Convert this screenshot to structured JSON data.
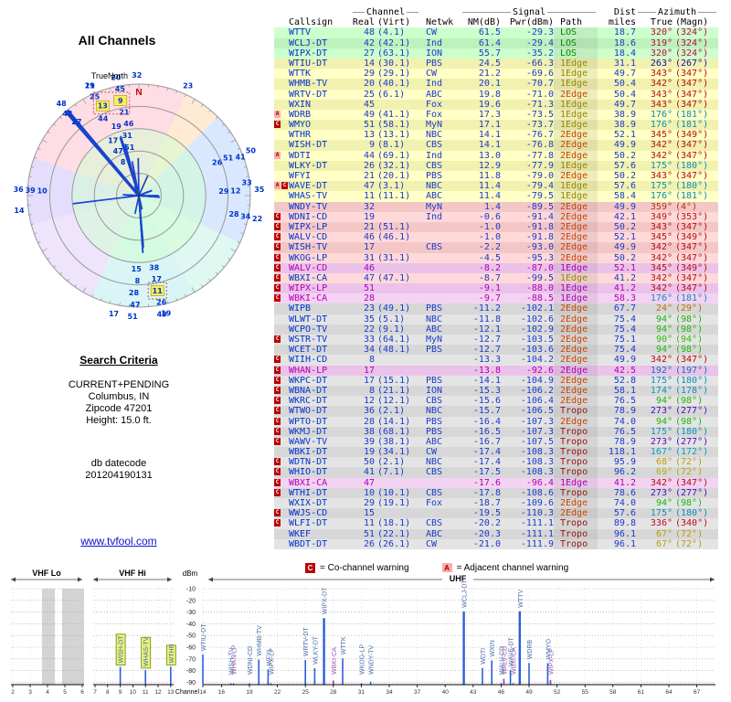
{
  "title": "All Channels",
  "radar": {
    "true_north_label": "TrueNorth",
    "north_label": "N",
    "highlighted_channels": [
      9,
      11,
      13
    ]
  },
  "criteria": {
    "heading": "Search Criteria",
    "lines": [
      "CURRENT+PENDING",
      "Columbus, IN",
      "Zipcode 47201",
      "Height: 15.0 ft."
    ],
    "db_label": "db datecode",
    "db_value": "201204190131"
  },
  "link": {
    "text": "www.tvfool.com"
  },
  "legend": {
    "c_symbol": "C",
    "c_text": "= Co-channel warning",
    "a_symbol": "A",
    "a_text": "= Adjacent channel warning"
  },
  "table": {
    "group_headers": {
      "channel": "Channel",
      "signal": "Signal",
      "dist": "Dist",
      "azimuth": "Azimuth"
    },
    "col_headers": {
      "callsign": "Callsign",
      "real": "Real",
      "virt": "(Virt)",
      "netwk": "Netwk",
      "nm": "NM(dB)",
      "pwr": "Pwr(dBm)",
      "path": "Path",
      "miles": "miles",
      "true": "True",
      "magn": "(Magn)"
    },
    "rows": [
      {
        "c": "WTTV",
        "r": 48,
        "v": "(4.1)",
        "n": "CW",
        "nm": "61.5",
        "pw": "-29.3",
        "p": "LOS",
        "mi": "18.7",
        "az": 320,
        "mg": 324,
        "z": "green",
        "w": ""
      },
      {
        "c": "WCLJ-DT",
        "r": 42,
        "v": "(42.1)",
        "n": "Ind",
        "nm": "61.4",
        "pw": "-29.4",
        "p": "LOS",
        "mi": "18.6",
        "az": 319,
        "mg": 324,
        "z": "green",
        "w": ""
      },
      {
        "c": "WIPX-DT",
        "r": 27,
        "v": "(63.1)",
        "n": "ION",
        "nm": "55.7",
        "pw": "-35.2",
        "p": "LOS",
        "mi": "18.4",
        "az": 320,
        "mg": 324,
        "z": "green",
        "w": ""
      },
      {
        "c": "WTIU-DT",
        "r": 14,
        "v": "(30.1)",
        "n": "PBS",
        "nm": "24.5",
        "pw": "-66.3",
        "p": "1Edge",
        "mi": "31.1",
        "az": 263,
        "mg": 267,
        "z": "yellow",
        "w": ""
      },
      {
        "c": "WTTK",
        "r": 29,
        "v": "(29.1)",
        "n": "CW",
        "nm": "21.2",
        "pw": "-69.6",
        "p": "1Edge",
        "mi": "49.7",
        "az": 343,
        "mg": 347,
        "z": "yellow",
        "w": ""
      },
      {
        "c": "WHMB-TV",
        "r": 20,
        "v": "(40.1)",
        "n": "Ind",
        "nm": "20.1",
        "pw": "-70.7",
        "p": "1Edge",
        "mi": "50.4",
        "az": 342,
        "mg": 347,
        "z": "yellow",
        "w": ""
      },
      {
        "c": "WRTV-DT",
        "r": 25,
        "v": "(6.1)",
        "n": "ABC",
        "nm": "19.8",
        "pw": "-71.0",
        "p": "2Edge",
        "mi": "50.4",
        "az": 343,
        "mg": 347,
        "z": "yellow",
        "w": ""
      },
      {
        "c": "WXIN",
        "r": 45,
        "v": "",
        "n": "Fox",
        "nm": "19.6",
        "pw": "-71.3",
        "p": "1Edge",
        "mi": "49.7",
        "az": 343,
        "mg": 347,
        "z": "yellow",
        "w": ""
      },
      {
        "c": "WDRB",
        "r": 49,
        "v": "(41.1)",
        "n": "Fox",
        "nm": "17.3",
        "pw": "-73.5",
        "p": "1Edge",
        "mi": "38.9",
        "az": 176,
        "mg": 181,
        "z": "yellow",
        "w": "A"
      },
      {
        "c": "WMYO",
        "r": 51,
        "v": "(58.1)",
        "n": "MyN",
        "nm": "17.1",
        "pw": "-73.7",
        "p": "1Edge",
        "mi": "38.9",
        "az": 176,
        "mg": 181,
        "z": "yellow",
        "w": "C"
      },
      {
        "c": "WTHR",
        "r": 13,
        "v": "(13.1)",
        "n": "NBC",
        "nm": "14.1",
        "pw": "-76.7",
        "p": "2Edge",
        "mi": "52.1",
        "az": 345,
        "mg": 349,
        "z": "yellow",
        "w": ""
      },
      {
        "c": "WISH-DT",
        "r": 9,
        "v": "(8.1)",
        "n": "CBS",
        "nm": "14.1",
        "pw": "-76.8",
        "p": "2Edge",
        "mi": "49.9",
        "az": 342,
        "mg": 347,
        "z": "yellow",
        "w": ""
      },
      {
        "c": "WDTI",
        "r": 44,
        "v": "(69.1)",
        "n": "Ind",
        "nm": "13.0",
        "pw": "-77.8",
        "p": "2Edge",
        "mi": "50.2",
        "az": 342,
        "mg": 347,
        "z": "yellow",
        "w": "A"
      },
      {
        "c": "WLKY-DT",
        "r": 26,
        "v": "(32.1)",
        "n": "CBS",
        "nm": "12.9",
        "pw": "-77.9",
        "p": "1Edge",
        "mi": "57.6",
        "az": 175,
        "mg": 180,
        "z": "yellow",
        "w": ""
      },
      {
        "c": "WFYI",
        "r": 21,
        "v": "(20.1)",
        "n": "PBS",
        "nm": "11.8",
        "pw": "-79.0",
        "p": "2Edge",
        "mi": "50.2",
        "az": 343,
        "mg": 347,
        "z": "yellow",
        "w": ""
      },
      {
        "c": "WAVE-DT",
        "r": 47,
        "v": "(3.1)",
        "n": "NBC",
        "nm": "11.4",
        "pw": "-79.4",
        "p": "1Edge",
        "mi": "57.6",
        "az": 175,
        "mg": 180,
        "z": "yellow",
        "w": "AC"
      },
      {
        "c": "WHAS-TV",
        "r": 11,
        "v": "(11.1)",
        "n": "ABC",
        "nm": "11.4",
        "pw": "-79.5",
        "p": "1Edge",
        "mi": "58.4",
        "az": 176,
        "mg": 181,
        "z": "yellow",
        "w": ""
      },
      {
        "c": "WNDY-TV",
        "r": 32,
        "v": "",
        "n": "MyN",
        "nm": "1.4",
        "pw": "-89.5",
        "p": "2Edge",
        "mi": "49.9",
        "az": 359,
        "mg": 4,
        "z": "pink",
        "w": ""
      },
      {
        "c": "WDNI-CD",
        "r": 19,
        "v": "",
        "n": "Ind",
        "nm": "-0.6",
        "pw": "-91.4",
        "p": "2Edge",
        "mi": "42.1",
        "az": 349,
        "mg": 353,
        "z": "pink",
        "w": "C"
      },
      {
        "c": "WIPX-LP",
        "r": 21,
        "v": "(51.1)",
        "n": "",
        "nm": "-1.0",
        "pw": "-91.8",
        "p": "2Edge",
        "mi": "50.2",
        "az": 343,
        "mg": 347,
        "z": "pink",
        "w": "C"
      },
      {
        "c": "WALV-CD",
        "r": 46,
        "v": "(46.1)",
        "n": "",
        "nm": "-1.0",
        "pw": "-91.8",
        "p": "2Edge",
        "mi": "52.1",
        "az": 345,
        "mg": 349,
        "z": "pink",
        "w": "C"
      },
      {
        "c": "WISH-TV",
        "r": 17,
        "v": "",
        "n": "CBS",
        "nm": "-2.2",
        "pw": "-93.0",
        "p": "2Edge",
        "mi": "49.9",
        "az": 342,
        "mg": 347,
        "z": "pink",
        "w": "C"
      },
      {
        "c": "WKOG-LP",
        "r": 31,
        "v": "(31.1)",
        "n": "",
        "nm": "-4.5",
        "pw": "-95.3",
        "p": "2Edge",
        "mi": "50.2",
        "az": 342,
        "mg": 347,
        "z": "pink",
        "w": "C"
      },
      {
        "c": "WALV-CD",
        "r": 46,
        "v": "",
        "n": "",
        "nm": "-8.2",
        "pw": "-87.0",
        "p": "1Edge",
        "mi": "52.1",
        "az": 345,
        "mg": 349,
        "z": "magenta",
        "w": "C"
      },
      {
        "c": "WBXI-CA",
        "r": 47,
        "v": "(47.1)",
        "n": "",
        "nm": "-8.7",
        "pw": "-99.5",
        "p": "1Edge",
        "mi": "41.2",
        "az": 342,
        "mg": 347,
        "z": "pink",
        "w": "C"
      },
      {
        "c": "WIPX-LP",
        "r": 51,
        "v": "",
        "n": "",
        "nm": "-9.1",
        "pw": "-88.0",
        "p": "1Edge",
        "mi": "41.2",
        "az": 342,
        "mg": 347,
        "z": "magenta",
        "w": "C"
      },
      {
        "c": "WBKI-CA",
        "r": 28,
        "v": "",
        "n": "",
        "nm": "-9.7",
        "pw": "-88.5",
        "p": "1Edge",
        "mi": "58.3",
        "az": 176,
        "mg": 181,
        "z": "magenta",
        "w": "C"
      },
      {
        "c": "WIPB",
        "r": 23,
        "v": "(49.1)",
        "n": "PBS",
        "nm": "-11.2",
        "pw": "-102.1",
        "p": "2Edge",
        "mi": "67.7",
        "az": 24,
        "mg": 29,
        "z": "gray",
        "w": ""
      },
      {
        "c": "WLWT-DT",
        "r": 35,
        "v": "(5.1)",
        "n": "NBC",
        "nm": "-11.8",
        "pw": "-102.6",
        "p": "2Edge",
        "mi": "75.4",
        "az": 94,
        "mg": 98,
        "z": "gray",
        "w": ""
      },
      {
        "c": "WCPO-TV",
        "r": 22,
        "v": "(9.1)",
        "n": "ABC",
        "nm": "-12.1",
        "pw": "-102.9",
        "p": "2Edge",
        "mi": "75.4",
        "az": 94,
        "mg": 98,
        "z": "gray",
        "w": ""
      },
      {
        "c": "WSTR-TV",
        "r": 33,
        "v": "(64.1)",
        "n": "MyN",
        "nm": "-12.7",
        "pw": "-103.5",
        "p": "2Edge",
        "mi": "75.1",
        "az": 90,
        "mg": 94,
        "z": "gray",
        "w": "C"
      },
      {
        "c": "WCET-DT",
        "r": 34,
        "v": "(48.1)",
        "n": "PBS",
        "nm": "-12.7",
        "pw": "-103.6",
        "p": "2Edge",
        "mi": "75.4",
        "az": 94,
        "mg": 98,
        "z": "gray",
        "w": ""
      },
      {
        "c": "WIIH-CD",
        "r": 8,
        "v": "",
        "n": "",
        "nm": "-13.3",
        "pw": "-104.2",
        "p": "2Edge",
        "mi": "49.9",
        "az": 342,
        "mg": 347,
        "z": "gray",
        "w": "C"
      },
      {
        "c": "WHAN-LP",
        "r": 17,
        "v": "",
        "n": "",
        "nm": "-13.8",
        "pw": "-92.6",
        "p": "2Edge",
        "mi": "42.5",
        "az": 192,
        "mg": 197,
        "z": "magenta",
        "w": "C"
      },
      {
        "c": "WKPC-DT",
        "r": 17,
        "v": "(15.1)",
        "n": "PBS",
        "nm": "-14.1",
        "pw": "-104.9",
        "p": "2Edge",
        "mi": "52.8",
        "az": 175,
        "mg": 180,
        "z": "gray",
        "w": "C"
      },
      {
        "c": "WBNA-DT",
        "r": 8,
        "v": "(21.1)",
        "n": "ION",
        "nm": "-15.3",
        "pw": "-106.2",
        "p": "2Edge",
        "mi": "58.1",
        "az": 174,
        "mg": 178,
        "z": "gray",
        "w": "C"
      },
      {
        "c": "WKRC-DT",
        "r": 12,
        "v": "(12.1)",
        "n": "CBS",
        "nm": "-15.6",
        "pw": "-106.4",
        "p": "2Edge",
        "mi": "76.5",
        "az": 94,
        "mg": 98,
        "z": "gray",
        "w": "C"
      },
      {
        "c": "WTWO-DT",
        "r": 36,
        "v": "(2.1)",
        "n": "NBC",
        "nm": "-15.7",
        "pw": "-106.5",
        "p": "Tropo",
        "mi": "78.9",
        "az": 273,
        "mg": 277,
        "z": "gray",
        "w": "C"
      },
      {
        "c": "WPTO-DT",
        "r": 28,
        "v": "(14.1)",
        "n": "PBS",
        "nm": "-16.4",
        "pw": "-107.3",
        "p": "2Edge",
        "mi": "74.0",
        "az": 94,
        "mg": 98,
        "z": "gray",
        "w": "C"
      },
      {
        "c": "WKMJ-DT",
        "r": 38,
        "v": "(68.1)",
        "n": "PBS",
        "nm": "-16.5",
        "pw": "-107.3",
        "p": "Tropo",
        "mi": "76.5",
        "az": 175,
        "mg": 180,
        "z": "gray",
        "w": "C"
      },
      {
        "c": "WAWV-TV",
        "r": 39,
        "v": "(38.1)",
        "n": "ABC",
        "nm": "-16.7",
        "pw": "-107.5",
        "p": "Tropo",
        "mi": "78.9",
        "az": 273,
        "mg": 277,
        "z": "gray",
        "w": "C"
      },
      {
        "c": "WBKI-DT",
        "r": 19,
        "v": "(34.1)",
        "n": "CW",
        "nm": "-17.4",
        "pw": "-108.3",
        "p": "Tropo",
        "mi": "118.1",
        "az": 167,
        "mg": 172,
        "z": "gray",
        "w": ""
      },
      {
        "c": "WDTN-DT",
        "r": 50,
        "v": "(2.1)",
        "n": "NBC",
        "nm": "-17.4",
        "pw": "-108.3",
        "p": "Tropo",
        "mi": "95.9",
        "az": 68,
        "mg": 72,
        "z": "gray",
        "w": "C"
      },
      {
        "c": "WHIO-DT",
        "r": 41,
        "v": "(7.1)",
        "n": "CBS",
        "nm": "-17.5",
        "pw": "-108.3",
        "p": "Tropo",
        "mi": "96.2",
        "az": 69,
        "mg": 72,
        "z": "gray",
        "w": "C"
      },
      {
        "c": "WBXI-CA",
        "r": 47,
        "v": "",
        "n": "",
        "nm": "-17.6",
        "pw": "-96.4",
        "p": "1Edge",
        "mi": "41.2",
        "az": 342,
        "mg": 347,
        "z": "magenta",
        "w": "C"
      },
      {
        "c": "WTHI-DT",
        "r": 10,
        "v": "(10.1)",
        "n": "CBS",
        "nm": "-17.8",
        "pw": "-108.6",
        "p": "Tropo",
        "mi": "78.6",
        "az": 273,
        "mg": 277,
        "z": "gray",
        "w": "C"
      },
      {
        "c": "WXIX-DT",
        "r": 29,
        "v": "(19.1)",
        "n": "Fox",
        "nm": "-18.7",
        "pw": "-109.6",
        "p": "2Edge",
        "mi": "74.0",
        "az": 94,
        "mg": 98,
        "z": "gray",
        "w": ""
      },
      {
        "c": "WWJS-CD",
        "r": 15,
        "v": "",
        "n": "",
        "nm": "-19.5",
        "pw": "-110.3",
        "p": "2Edge",
        "mi": "57.6",
        "az": 175,
        "mg": 180,
        "z": "gray",
        "w": "C"
      },
      {
        "c": "WLFI-DT",
        "r": 11,
        "v": "(18.1)",
        "n": "CBS",
        "nm": "-20.2",
        "pw": "-111.1",
        "p": "Tropo",
        "mi": "89.8",
        "az": 336,
        "mg": 340,
        "z": "gray",
        "w": "C"
      },
      {
        "c": "WKEF",
        "r": 51,
        "v": "(22.1)",
        "n": "ABC",
        "nm": "-20.3",
        "pw": "-111.1",
        "p": "Tropo",
        "mi": "96.1",
        "az": 67,
        "mg": 72,
        "z": "gray",
        "w": ""
      },
      {
        "c": "WBDT-DT",
        "r": 26,
        "v": "(26.1)",
        "n": "CW",
        "nm": "-21.0",
        "pw": "-111.9",
        "p": "Tropo",
        "mi": "96.1",
        "az": 67,
        "mg": 72,
        "z": "gray",
        "w": ""
      }
    ]
  },
  "spectrum": {
    "vhf_lo": "VHF Lo",
    "vhf_hi": "VHF Hi",
    "uhf": "UHF",
    "dbm_label": "dBm",
    "channel_label": "Channel",
    "y_ticks": [
      -10,
      -20,
      -30,
      -40,
      -50,
      -60,
      -70,
      -80,
      -90
    ],
    "lo_ticks": [
      2,
      3,
      4,
      5,
      6
    ],
    "hi_ticks": [
      7,
      8,
      9,
      10,
      11,
      12,
      13
    ],
    "uhf_ticks": [
      14,
      16,
      19,
      22,
      25,
      28,
      31,
      34,
      37,
      40,
      43,
      46,
      49,
      52,
      55,
      58,
      61,
      64,
      67
    ],
    "boxed_callsigns": [
      "WISH-DT",
      "WHAS-TV",
      "WTHR"
    ]
  }
}
